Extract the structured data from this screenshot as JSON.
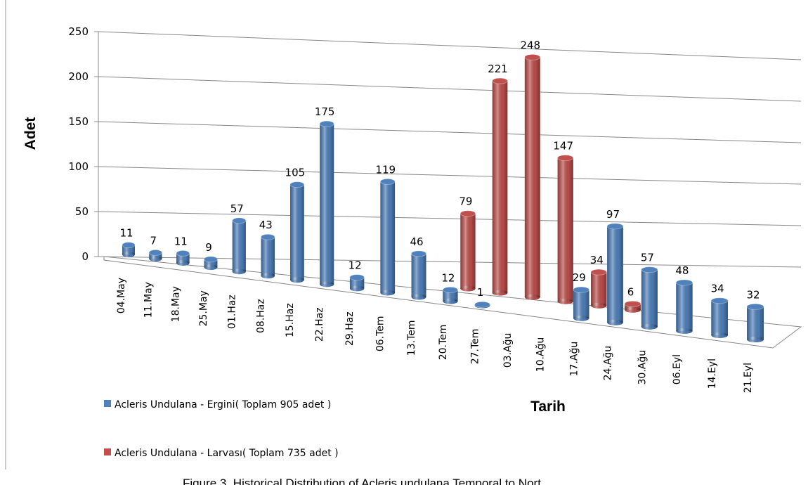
{
  "chart_data": {
    "type": "bar3d",
    "categories": [
      "04.May",
      "11.May",
      "18.May",
      "25.May",
      "01.Haz",
      "08.Haz",
      "15.Haz",
      "22.Haz",
      "29.Haz",
      "06.Tem",
      "13.Tem",
      "20.Tem",
      "27.Tem",
      "03.Ağu",
      "10.Ağu",
      "17.Ağu",
      "24.Ağu",
      "30.Ağu",
      "06.Eyl",
      "14.Eyl",
      "21.Eyl"
    ],
    "series": [
      {
        "name": "Acleris Undulana - Ergini( Toplam  905 adet )",
        "color": "#4f81bd",
        "values": [
          11,
          7,
          11,
          9,
          57,
          43,
          105,
          175,
          12,
          119,
          46,
          12,
          1,
          null,
          null,
          29,
          97,
          57,
          48,
          34,
          32
        ]
      },
      {
        "name": "Acleris Undulana - Larvası( Toplam  735 adet )",
        "color": "#c0504d",
        "values": [
          null,
          null,
          null,
          null,
          null,
          null,
          null,
          null,
          null,
          null,
          null,
          79,
          221,
          248,
          147,
          34,
          6,
          null,
          null,
          null,
          null
        ]
      }
    ],
    "ylim": [
      0,
      250
    ],
    "yticks": [
      0,
      50,
      100,
      150,
      200,
      250
    ],
    "grid": true,
    "y_label": "Adet",
    "x_label": "Tarih",
    "caption": "Figure 3. Historical Distribution of Acleris undulana Temporal to Nort"
  }
}
